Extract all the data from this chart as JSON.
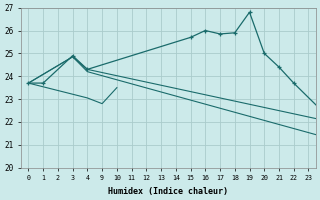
{
  "xlabel": "Humidex (Indice chaleur)",
  "bg_color": "#cceaea",
  "grid_color": "#aacccc",
  "line_color": "#1a6b6b",
  "x_labels": [
    "0",
    "1",
    "2",
    "3",
    "4",
    "9",
    "10",
    "11",
    "12",
    "13",
    "14",
    "15",
    "16",
    "17",
    "18",
    "19",
    "20",
    "21",
    "22",
    "23"
  ],
  "ylim": [
    20,
    27
  ],
  "curve1_xi": [
    0,
    1,
    3,
    4,
    11,
    12,
    13,
    14,
    15,
    16,
    17,
    18,
    21,
    22,
    23
  ],
  "curve1_y": [
    23.7,
    23.7,
    24.9,
    24.3,
    25.7,
    26.0,
    25.85,
    25.9,
    26.8,
    25.0,
    24.4,
    23.7,
    21.8,
    21.2,
    20.4
  ],
  "curve2_xi": [
    0,
    3,
    4,
    22,
    23
  ],
  "curve2_y": [
    23.7,
    24.85,
    24.2,
    21.0,
    20.4
  ],
  "curve3_xi": [
    0,
    3,
    4,
    22,
    23
  ],
  "curve3_y": [
    23.7,
    24.85,
    24.3,
    21.8,
    20.4
  ],
  "curve4_xi": [
    0,
    4,
    5,
    6
  ],
  "curve4_y": [
    23.7,
    23.05,
    22.8,
    23.5
  ]
}
